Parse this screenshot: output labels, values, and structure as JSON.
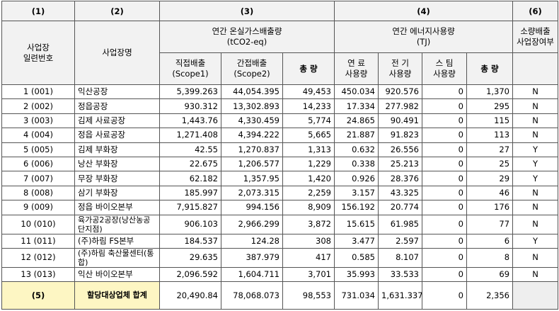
{
  "header_numbers": [
    "(1)",
    "(2)",
    "(3)",
    "(4)",
    "(6)"
  ],
  "headers": {
    "id": "사업장\n일련번호",
    "name": "사업장명",
    "emission_group": "연간 온실가스배출량\n(tCO2-eq)",
    "energy_group": "연간 에너지사용량\n(TJ)",
    "small_emitter": "소량배출\n사업장여부",
    "direct": "직접배출\n(Scope1)",
    "indirect": "간접배출\n(Scope2)",
    "emission_total": "총 량",
    "fuel": "연 료\n사용량",
    "electricity": "전 기\n사용량",
    "steam": "스 팀\n사용량",
    "energy_total": "총 량"
  },
  "rows": [
    {
      "id": "1 (001)",
      "name": "익산공장",
      "direct": "5,399.263",
      "indirect": "44,054.395",
      "em_total": "49,453",
      "fuel": "450.034",
      "elec": "920.576",
      "steam": "0",
      "en_total": "1,370",
      "small": "N"
    },
    {
      "id": "2 (002)",
      "name": "정읍공장",
      "direct": "930.312",
      "indirect": "13,302.893",
      "em_total": "14,233",
      "fuel": "17.334",
      "elec": "277.982",
      "steam": "0",
      "en_total": "295",
      "small": "N"
    },
    {
      "id": "3 (003)",
      "name": "김제 사료공장",
      "direct": "1,443.76",
      "indirect": "4,330.459",
      "em_total": "5,774",
      "fuel": "24.865",
      "elec": "90.491",
      "steam": "0",
      "en_total": "115",
      "small": "N"
    },
    {
      "id": "4 (004)",
      "name": "정읍 사료공장",
      "direct": "1,271.408",
      "indirect": "4,394.222",
      "em_total": "5,665",
      "fuel": "21.887",
      "elec": "91.823",
      "steam": "0",
      "en_total": "113",
      "small": "N"
    },
    {
      "id": "5 (005)",
      "name": "김제 부화장",
      "direct": "42.55",
      "indirect": "1,270.837",
      "em_total": "1,313",
      "fuel": "0.632",
      "elec": "26.556",
      "steam": "0",
      "en_total": "27",
      "small": "Y"
    },
    {
      "id": "6 (006)",
      "name": "낭산 부화장",
      "direct": "22.675",
      "indirect": "1,206.577",
      "em_total": "1,229",
      "fuel": "0.338",
      "elec": "25.213",
      "steam": "0",
      "en_total": "25",
      "small": "Y"
    },
    {
      "id": "7 (007)",
      "name": "무장 부화장",
      "direct": "62.182",
      "indirect": "1,357.95",
      "em_total": "1,420",
      "fuel": "0.926",
      "elec": "28.376",
      "steam": "0",
      "en_total": "29",
      "small": "Y"
    },
    {
      "id": "8 (008)",
      "name": "삼기 부화장",
      "direct": "185.997",
      "indirect": "2,073.315",
      "em_total": "2,259",
      "fuel": "3.157",
      "elec": "43.325",
      "steam": "0",
      "en_total": "46",
      "small": "N"
    },
    {
      "id": "9 (009)",
      "name": "정읍 바이오본부",
      "direct": "7,915.827",
      "indirect": "994.156",
      "em_total": "8,909",
      "fuel": "156.192",
      "elec": "20.774",
      "steam": "0",
      "en_total": "176",
      "small": "N"
    },
    {
      "id": "10 (010)",
      "name": "육가공2공장(낭산농공단지점)",
      "direct": "906.103",
      "indirect": "2,966.299",
      "em_total": "3,872",
      "fuel": "15.615",
      "elec": "61.985",
      "steam": "0",
      "en_total": "77",
      "small": "N"
    },
    {
      "id": "11 (011)",
      "name": "(주)하림 FS본부",
      "direct": "184.537",
      "indirect": "124.28",
      "em_total": "308",
      "fuel": "3.477",
      "elec": "2.597",
      "steam": "0",
      "en_total": "6",
      "small": "Y"
    },
    {
      "id": "12 (012)",
      "name": "(주)하림 축산물센터(통합)",
      "direct": "29.635",
      "indirect": "387.979",
      "em_total": "417",
      "fuel": "0.585",
      "elec": "8.107",
      "steam": "0",
      "en_total": "8",
      "small": "N"
    },
    {
      "id": "13 (013)",
      "name": "익산 바이오본부",
      "direct": "2,096.592",
      "indirect": "1,604.711",
      "em_total": "3,701",
      "fuel": "35.993",
      "elec": "33.533",
      "steam": "0",
      "en_total": "69",
      "small": "N"
    }
  ],
  "total": {
    "id": "(5)",
    "name": "할당대상업체 합계",
    "direct": "20,490.84",
    "indirect": "78,068.073",
    "em_total": "98,553",
    "fuel": "731.034",
    "elec": "1,631.337",
    "steam": "0",
    "en_total": "2,356"
  }
}
